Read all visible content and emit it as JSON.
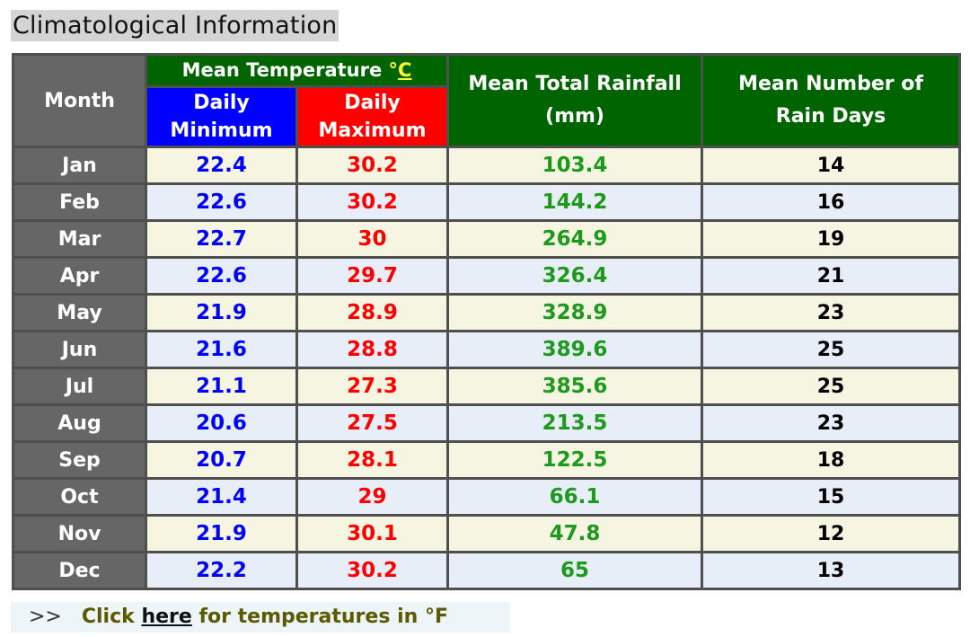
{
  "title": "Climatological Information",
  "headers": {
    "month": "Month",
    "mean_temperature": "Mean Temperature ",
    "temp_unit_degree": "°",
    "temp_unit_letter": "C",
    "daily_minimum_line1": "Daily",
    "daily_minimum_line2": "Minimum",
    "daily_maximum_line1": "Daily",
    "daily_maximum_line2": "Maximum",
    "rainfall_line1": "Mean Total Rainfall",
    "rainfall_line2": "(mm)",
    "rain_days_line1": "Mean Number of",
    "rain_days_line2": "Rain Days"
  },
  "rows": [
    {
      "month": "Jan",
      "min": "22.4",
      "max": "30.2",
      "rainfall": "103.4",
      "rain_days": "14"
    },
    {
      "month": "Feb",
      "min": "22.6",
      "max": "30.2",
      "rainfall": "144.2",
      "rain_days": "16"
    },
    {
      "month": "Mar",
      "min": "22.7",
      "max": "30",
      "rainfall": "264.9",
      "rain_days": "19"
    },
    {
      "month": "Apr",
      "min": "22.6",
      "max": "29.7",
      "rainfall": "326.4",
      "rain_days": "21"
    },
    {
      "month": "May",
      "min": "21.9",
      "max": "28.9",
      "rainfall": "328.9",
      "rain_days": "23"
    },
    {
      "month": "Jun",
      "min": "21.6",
      "max": "28.8",
      "rainfall": "389.6",
      "rain_days": "25"
    },
    {
      "month": "Jul",
      "min": "21.1",
      "max": "27.3",
      "rainfall": "385.6",
      "rain_days": "25"
    },
    {
      "month": "Aug",
      "min": "20.6",
      "max": "27.5",
      "rainfall": "213.5",
      "rain_days": "23"
    },
    {
      "month": "Sep",
      "min": "20.7",
      "max": "28.1",
      "rainfall": "122.5",
      "rain_days": "18"
    },
    {
      "month": "Oct",
      "min": "21.4",
      "max": "29",
      "rainfall": "66.1",
      "rain_days": "15"
    },
    {
      "month": "Nov",
      "min": "21.9",
      "max": "30.1",
      "rainfall": "47.8",
      "rain_days": "12"
    },
    {
      "month": "Dec",
      "min": "22.2",
      "max": "30.2",
      "rainfall": "65",
      "rain_days": "13"
    }
  ],
  "footer": {
    "arrows": ">>",
    "prefix": "Click ",
    "link_label": "here",
    "suffix": " for temperatures in °F"
  },
  "colors": {
    "header_green": "#006400",
    "minimum_blue": "#0000ff",
    "maximum_red": "#ff0000",
    "rainfall_green": "#1c9a1c",
    "month_gray": "#666666"
  }
}
